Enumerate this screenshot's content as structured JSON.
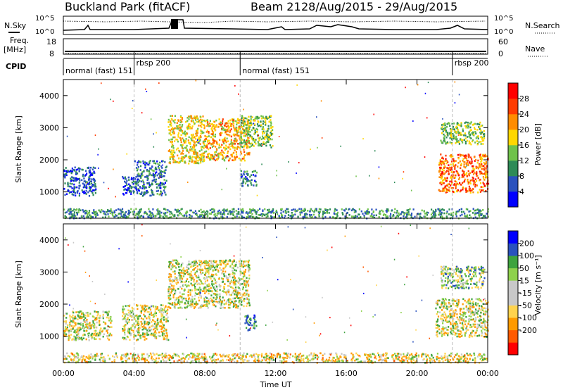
{
  "header": {
    "station": "Buckland Park (fitACF)",
    "beam": "Beam 21",
    "dates": "28/Aug/2015 - 29/Aug/2015"
  },
  "top_panels": {
    "nsky_label": "N.Sky",
    "nsearch_label": "N.Search",
    "noise_ticks": [
      "10^5",
      "10^0"
    ],
    "freq_label": "Freq.",
    "freq_unit": "[MHz]",
    "freq_ticks": [
      "18",
      "8"
    ],
    "nave_label": "Nave",
    "nave_ticks": [
      "60",
      "0"
    ],
    "cpid_label": "CPID",
    "cpid_segments": [
      {
        "label": "normal (fast) 151",
        "start_hour": 0.0
      },
      {
        "label": "rbsp 200",
        "start_hour": 4.0
      },
      {
        "label": "normal (fast) 151",
        "start_hour": 10.0
      },
      {
        "label": "rbsp 200",
        "start_hour": 22.0
      }
    ]
  },
  "xaxis": {
    "label": "Time UT",
    "ticks": [
      "00:00",
      "04:00",
      "08:00",
      "12:00",
      "16:00",
      "20:00",
      "00:00"
    ]
  },
  "chart_data": [
    {
      "type": "heatmap",
      "name": "power",
      "ylabel": "Slant Range [km]",
      "ylim": [
        180,
        4500
      ],
      "xlim_hours": [
        0,
        24
      ],
      "yticks": [
        "1000",
        "2000",
        "3000",
        "4000"
      ],
      "colorbar": {
        "label": "Power [dB]",
        "ticks": [
          "28",
          "24",
          "20",
          "16",
          "12",
          "8",
          "4"
        ],
        "colors": [
          "#0000ff",
          "#2a52be",
          "#2e8b57",
          "#6fc24b",
          "#ffd700",
          "#ff8c00",
          "#ff3b00",
          "#ff0000"
        ]
      },
      "regions": [
        {
          "t": [
            0.0,
            1.8
          ],
          "r": [
            900,
            1800
          ],
          "level": 6
        },
        {
          "t": [
            3.3,
            4.0
          ],
          "r": [
            900,
            1500
          ],
          "level": 6
        },
        {
          "t": [
            4.0,
            5.8
          ],
          "r": [
            900,
            2000
          ],
          "level": 8
        },
        {
          "t": [
            5.9,
            8.0
          ],
          "r": [
            1900,
            3400
          ],
          "level": 18
        },
        {
          "t": [
            8.0,
            10.5
          ],
          "r": [
            2000,
            3300
          ],
          "level": 20
        },
        {
          "t": [
            10.0,
            11.8
          ],
          "r": [
            2400,
            3400
          ],
          "level": 14
        },
        {
          "t": [
            10.0,
            10.9
          ],
          "r": [
            1200,
            1700
          ],
          "level": 8
        },
        {
          "t": [
            21.2,
            24.0
          ],
          "r": [
            1000,
            2200
          ],
          "level": 24
        },
        {
          "t": [
            21.3,
            23.8
          ],
          "r": [
            2500,
            3200
          ],
          "level": 14
        },
        {
          "t": [
            0.0,
            24.0
          ],
          "r": [
            200,
            500
          ],
          "level": 10
        }
      ]
    },
    {
      "type": "heatmap",
      "name": "velocity",
      "ylabel": "Slant Range [km]",
      "ylim": [
        180,
        4500
      ],
      "xlim_hours": [
        0,
        24
      ],
      "yticks": [
        "1000",
        "2000",
        "3000",
        "4000"
      ],
      "colorbar": {
        "label": "Velocity [m s⁻¹]",
        "ticks": [
          "200",
          "100",
          "50",
          "15",
          "-15",
          "-50",
          "-100",
          "-200"
        ],
        "colors": [
          "#ff0000",
          "#ff5a00",
          "#ff9a00",
          "#ffd34d",
          "#c8c8c8",
          "#c8c8c8",
          "#8ed14c",
          "#3ea33e",
          "#2a52be",
          "#0000ff"
        ]
      },
      "regions": [
        {
          "t": [
            0.0,
            2.7
          ],
          "r": [
            900,
            1800
          ],
          "level": 0
        },
        {
          "t": [
            3.3,
            5.9
          ],
          "r": [
            900,
            2000
          ],
          "level": 0
        },
        {
          "t": [
            5.9,
            10.5
          ],
          "r": [
            1900,
            3400
          ],
          "level": 0
        },
        {
          "t": [
            10.2,
            10.9
          ],
          "r": [
            1200,
            1700
          ],
          "level": 120
        },
        {
          "t": [
            21.0,
            24.0
          ],
          "r": [
            1000,
            2200
          ],
          "level": 0
        },
        {
          "t": [
            21.3,
            23.8
          ],
          "r": [
            2500,
            3200
          ],
          "level": 30
        },
        {
          "t": [
            0.0,
            24.0
          ],
          "r": [
            200,
            500
          ],
          "level": -20
        }
      ]
    }
  ]
}
